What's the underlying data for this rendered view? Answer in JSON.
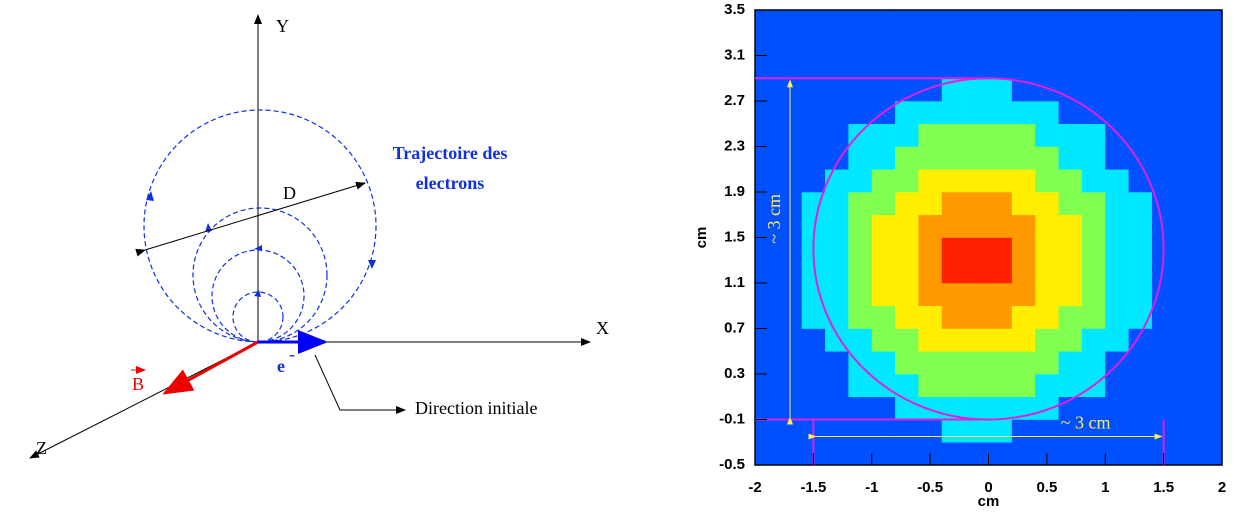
{
  "diagram": {
    "y_axis": "Y",
    "x_axis": "X",
    "z_axis": "Z",
    "diameter": "D",
    "trajectory_label": [
      "Trajectoire des",
      "electrons"
    ],
    "electron": "e",
    "electron_charge": "-",
    "field": "B",
    "direction_label": "Direction initiale"
  },
  "chart_data": {
    "type": "heatmap",
    "x_label": "cm",
    "y_label": "cm",
    "xlim": [
      -2,
      2
    ],
    "ylim": [
      -0.5,
      3.5
    ],
    "xticks": [
      -2,
      -1.5,
      -1,
      -0.5,
      0,
      0.5,
      1,
      1.5,
      2
    ],
    "yticks": [
      -0.5,
      -0.1,
      0.3,
      0.7,
      1.1,
      1.5,
      1.9,
      2.3,
      2.7,
      3.1,
      3.5
    ],
    "x_bins": [
      -2,
      -1.8,
      -1.6,
      -1.4,
      -1.2,
      -1,
      -0.8,
      -0.6,
      -0.4,
      -0.2,
      0,
      0.2,
      0.4,
      0.6,
      0.8,
      1,
      1.2,
      1.4,
      1.6,
      1.8,
      2
    ],
    "y_bins": [
      -0.5,
      -0.3,
      -0.1,
      0.1,
      0.3,
      0.5,
      0.7,
      0.9,
      1.1,
      1.3,
      1.5,
      1.7,
      1.9,
      2.1,
      2.3,
      2.5,
      2.7,
      2.9,
      3.1,
      3.3,
      3.5
    ],
    "values": [
      [
        0,
        0,
        0,
        0,
        0,
        0,
        0,
        0,
        0,
        0,
        0,
        0,
        0,
        0,
        0,
        0,
        0,
        0,
        0,
        0
      ],
      [
        0,
        0,
        0,
        0,
        0,
        0,
        0,
        0,
        1,
        1,
        1,
        0,
        0,
        0,
        0,
        0,
        0,
        0,
        0,
        0
      ],
      [
        0,
        0,
        0,
        0,
        0,
        0,
        1,
        1,
        1,
        1,
        1,
        1,
        1,
        0,
        0,
        0,
        0,
        0,
        0,
        0
      ],
      [
        0,
        0,
        0,
        0,
        1,
        1,
        1,
        3,
        3,
        3,
        3,
        3,
        1,
        1,
        1,
        0,
        0,
        0,
        0,
        0
      ],
      [
        0,
        0,
        0,
        0,
        1,
        1,
        3,
        3,
        3,
        3,
        3,
        3,
        3,
        1,
        1,
        0,
        0,
        0,
        0,
        0
      ],
      [
        0,
        0,
        0,
        1,
        1,
        3,
        3,
        5,
        5,
        5,
        5,
        5,
        3,
        3,
        1,
        1,
        0,
        0,
        0,
        0
      ],
      [
        0,
        0,
        1,
        1,
        3,
        3,
        5,
        5,
        7,
        7,
        7,
        5,
        5,
        3,
        3,
        1,
        1,
        0,
        0,
        0
      ],
      [
        0,
        0,
        1,
        1,
        3,
        5,
        5,
        7,
        7,
        7,
        7,
        7,
        5,
        5,
        3,
        1,
        1,
        0,
        0,
        0
      ],
      [
        0,
        0,
        1,
        1,
        3,
        5,
        5,
        7,
        9,
        9,
        9,
        7,
        5,
        5,
        3,
        1,
        1,
        0,
        0,
        0
      ],
      [
        0,
        0,
        1,
        1,
        3,
        5,
        5,
        7,
        9,
        9,
        9,
        7,
        5,
        5,
        3,
        1,
        1,
        0,
        0,
        0
      ],
      [
        0,
        0,
        1,
        1,
        3,
        5,
        5,
        7,
        7,
        7,
        7,
        7,
        5,
        5,
        3,
        1,
        1,
        0,
        0,
        0
      ],
      [
        0,
        0,
        1,
        1,
        3,
        3,
        5,
        5,
        7,
        7,
        7,
        5,
        5,
        3,
        3,
        1,
        1,
        0,
        0,
        0
      ],
      [
        0,
        0,
        0,
        1,
        1,
        3,
        3,
        5,
        5,
        5,
        5,
        5,
        3,
        3,
        1,
        1,
        0,
        0,
        0,
        0
      ],
      [
        0,
        0,
        0,
        0,
        1,
        1,
        3,
        3,
        3,
        3,
        3,
        3,
        3,
        1,
        1,
        0,
        0,
        0,
        0,
        0
      ],
      [
        0,
        0,
        0,
        0,
        1,
        1,
        1,
        3,
        3,
        3,
        3,
        3,
        1,
        1,
        1,
        0,
        0,
        0,
        0,
        0
      ],
      [
        0,
        0,
        0,
        0,
        0,
        0,
        1,
        1,
        1,
        1,
        1,
        1,
        1,
        0,
        0,
        0,
        0,
        0,
        0,
        0
      ],
      [
        0,
        0,
        0,
        0,
        0,
        0,
        0,
        0,
        1,
        1,
        1,
        0,
        0,
        0,
        0,
        0,
        0,
        0,
        0,
        0
      ],
      [
        0,
        0,
        0,
        0,
        0,
        0,
        0,
        0,
        0,
        0,
        0,
        0,
        0,
        0,
        0,
        0,
        0,
        0,
        0,
        0
      ],
      [
        0,
        0,
        0,
        0,
        0,
        0,
        0,
        0,
        0,
        0,
        0,
        0,
        0,
        0,
        0,
        0,
        0,
        0,
        0,
        0
      ],
      [
        0,
        0,
        0,
        0,
        0,
        0,
        0,
        0,
        0,
        0,
        0,
        0,
        0,
        0,
        0,
        0,
        0,
        0,
        0,
        0
      ]
    ],
    "colorscale": [
      "#0050ff",
      "#00e8ff",
      "#80ff50",
      "#ffee00",
      "#ff9900",
      "#ff2000"
    ],
    "guides": {
      "color": "#e020e0",
      "circle": {
        "cx": 0,
        "cy": 1.4,
        "r": 1.5
      },
      "x_lines": [
        -1.5,
        1.5
      ],
      "y_lines": [
        -0.1,
        2.9
      ]
    },
    "annotations": [
      "~ 3 cm",
      "~ 3 cm"
    ],
    "annotation_color": "#ffee55"
  }
}
